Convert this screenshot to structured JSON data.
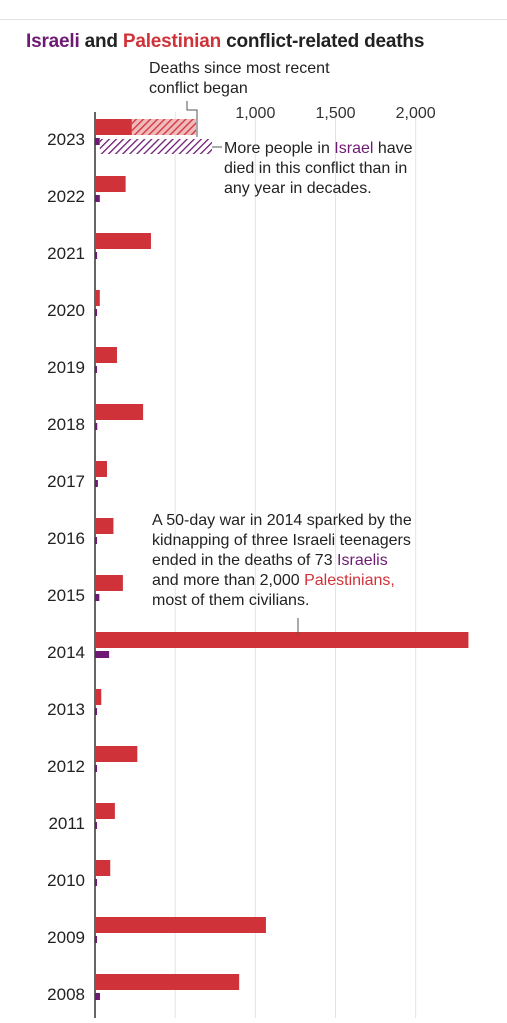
{
  "title": {
    "israeli": "Israeli",
    "and": " and ",
    "palestinian": "Palestinian",
    "rest": " conflict-related deaths"
  },
  "colors": {
    "israeli": "#6e1a75",
    "palestinian": "#cf3339",
    "grid": "#e3e3e3",
    "axis": "#333333"
  },
  "annotations": {
    "since_recent": {
      "line1": "Deaths since most recent",
      "line2": "conflict began"
    },
    "israel_2023": {
      "line1_a": "More people in ",
      "line1_b": "Israel",
      "line1_c": " have",
      "line2": "died in this conflict than in",
      "line3": "any year in decades."
    },
    "war_2014": {
      "line1": "A 50-day war in 2014 sparked by the",
      "line2": "kidnapping of three Israeli teenagers",
      "line3_a": "ended in the deaths of 73 ",
      "line3_b": "Israelis",
      "line4_a": "and more than 2,000 ",
      "line4_b": "Palestinians,",
      "line5": "most of them civilians."
    }
  },
  "chart_data": {
    "type": "bar",
    "orientation": "horizontal",
    "grid": true,
    "xlim": [
      0,
      2320
    ],
    "x_ticks": [
      500,
      1000,
      1500,
      2000
    ],
    "x_tick_labels": [
      "",
      "1,000",
      "1,500",
      "2,000"
    ],
    "categories": [
      "2023",
      "2022",
      "2021",
      "2020",
      "2019",
      "2018",
      "2017",
      "2016",
      "2015",
      "2014",
      "2013",
      "2012",
      "2011",
      "2010",
      "2009",
      "2008"
    ],
    "series": [
      {
        "name": "Palestinian",
        "color": "#cf3339",
        "values": [
          230,
          191,
          349,
          30,
          137,
          300,
          75,
          115,
          174,
          2329,
          39,
          264,
          124,
          95,
          1066,
          899
        ]
      },
      {
        "name": "Israeli",
        "color": "#6e1a75",
        "values": [
          30,
          30,
          13,
          3,
          10,
          14,
          18,
          12,
          27,
          88,
          6,
          9,
          11,
          9,
          9,
          31
        ]
      }
    ],
    "since_recent_conflict_2023": {
      "Palestinian": 400,
      "Israeli": 700
    }
  }
}
